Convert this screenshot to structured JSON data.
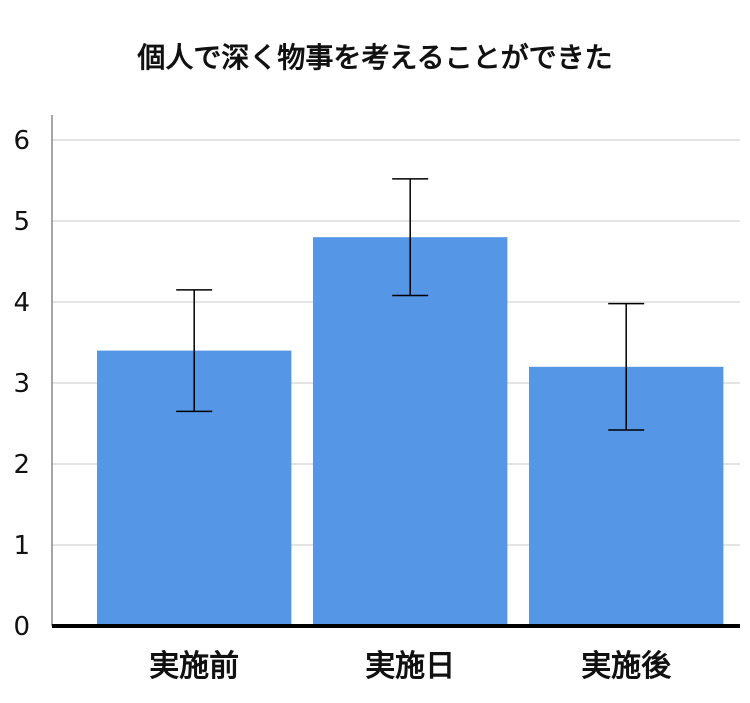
{
  "chart_data": {
    "type": "bar",
    "title": "個人で深く物事を考えることができた",
    "categories": [
      "実施前",
      "実施日",
      "実施後"
    ],
    "values": [
      3.4,
      4.8,
      3.2
    ],
    "error_low": [
      2.65,
      4.08,
      2.42
    ],
    "error_high": [
      4.15,
      5.52,
      3.98
    ],
    "ylim": [
      0,
      6
    ],
    "yticks": [
      0,
      1,
      2,
      3,
      4,
      5,
      6
    ],
    "xlabel": "",
    "ylabel": "",
    "grid": true,
    "bar_color": "#5596e6",
    "grid_color": "#c8c8c8",
    "axis_color": "#000000"
  }
}
